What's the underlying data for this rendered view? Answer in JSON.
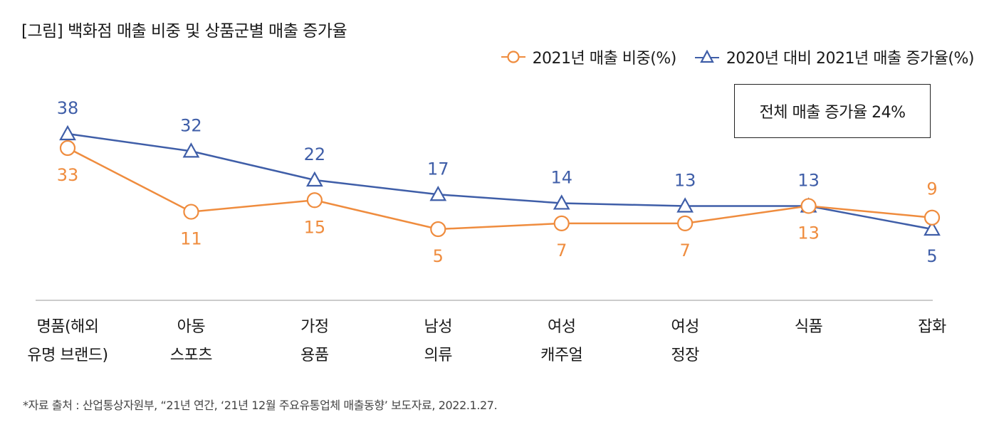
{
  "title": "[그림] 백화점 매출 비중 및 상품군별 매출 증가율",
  "legend": {
    "share_label": "2021년 매출 비중(%)",
    "growth_label": "2020년 대비 2021년 매출 증가율(%)"
  },
  "summary_box": "전체 매출 증가율 24%",
  "source": "*자료 출처 : 산업통상자원부, “21년 연간, ‘21년 12월 주요유통업체 매출동향’ 보도자료, 2022.1.27.",
  "colors": {
    "share": "#ef8c3e",
    "growth": "#3f5ea8",
    "axis": "#bbbbbb"
  },
  "chart_data": {
    "type": "line",
    "categories": [
      [
        "명품(해외",
        "유명 브랜드)"
      ],
      [
        "아동",
        "스포츠"
      ],
      [
        "가정",
        "용품"
      ],
      [
        "남성",
        "의류"
      ],
      [
        "여성",
        "캐주얼"
      ],
      [
        "여성",
        "정장"
      ],
      [
        "식품"
      ],
      [
        "잡화"
      ]
    ],
    "series": [
      {
        "name": "2021년 매출 비중(%)",
        "marker": "circle",
        "values": [
          33,
          11,
          15,
          5,
          7,
          7,
          13,
          9
        ]
      },
      {
        "name": "2020년 대비 2021년 매출 증가율(%)",
        "marker": "triangle",
        "values": [
          38,
          32,
          22,
          17,
          14,
          13,
          13,
          5
        ]
      }
    ],
    "legend_position": "top-right",
    "grid": false
  }
}
